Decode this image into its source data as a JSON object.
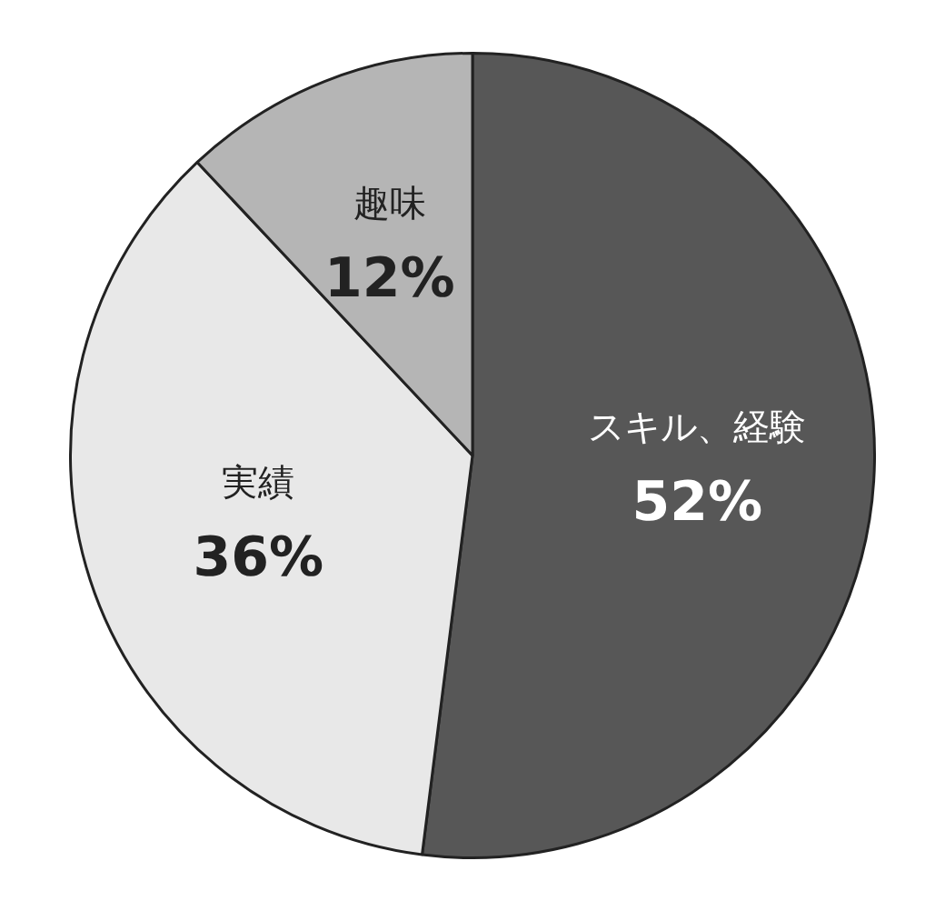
{
  "chart_data": {
    "type": "pie",
    "categories": [
      "スキル、経験",
      "実績",
      "趣味"
    ],
    "values": [
      52,
      36,
      12
    ],
    "colors": [
      "#575757",
      "#e8e8e8",
      "#b5b5b5"
    ],
    "value_labels": [
      "52%",
      "36%",
      "12%"
    ],
    "legend": false
  }
}
